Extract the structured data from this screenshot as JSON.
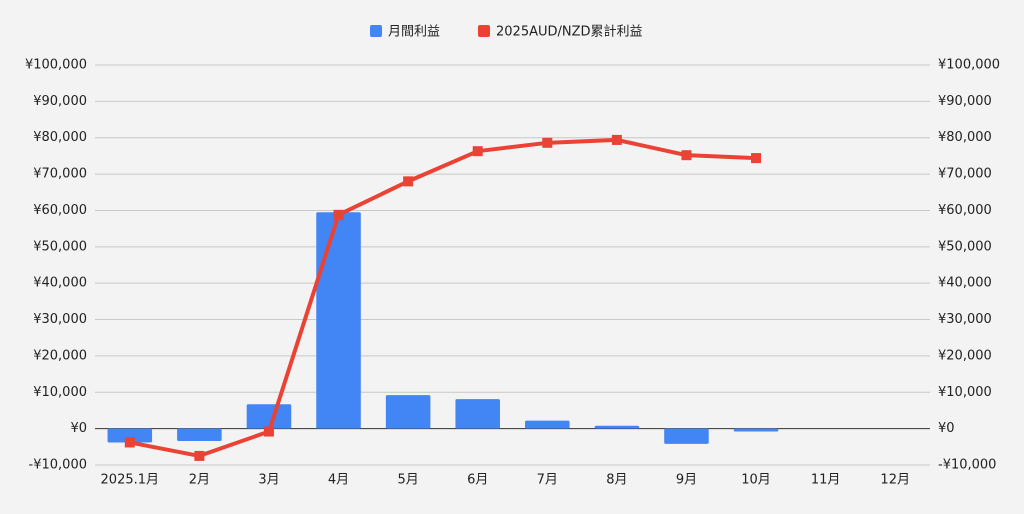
{
  "chart_data": {
    "type": "combo",
    "categories": [
      "2025.1月",
      "2月",
      "3月",
      "4月",
      "5月",
      "6月",
      "7月",
      "8月",
      "9月",
      "10月",
      "11月",
      "12月"
    ],
    "series": [
      {
        "name": "月間利益",
        "type": "bar",
        "color": "#4285f4",
        "values": [
          -3800,
          -3400,
          6700,
          59500,
          9200,
          8100,
          2200,
          800,
          -4200,
          -800,
          null,
          null
        ]
      },
      {
        "name": "2025AUD/NZD累計利益",
        "type": "line",
        "axis": "y2",
        "color": "#ea4335",
        "values": [
          -3800,
          -7500,
          -800,
          58800,
          68000,
          76300,
          78600,
          79400,
          75200,
          74400,
          null,
          null
        ]
      }
    ],
    "ylim": [
      -10000,
      100000
    ],
    "yticks": [
      {
        "value": -10000,
        "label": "-¥10,000"
      },
      {
        "value": 0,
        "label": "¥0"
      },
      {
        "value": 10000,
        "label": "¥10,000"
      },
      {
        "value": 20000,
        "label": "¥20,000"
      },
      {
        "value": 30000,
        "label": "¥30,000"
      },
      {
        "value": 40000,
        "label": "¥40,000"
      },
      {
        "value": 50000,
        "label": "¥50,000"
      },
      {
        "value": 60000,
        "label": "¥60,000"
      },
      {
        "value": 70000,
        "label": "¥70,000"
      },
      {
        "value": 80000,
        "label": "¥80,000"
      },
      {
        "value": 90000,
        "label": "¥90,000"
      },
      {
        "value": 100000,
        "label": "¥100,000"
      }
    ],
    "y2lim": [
      -10000,
      100000
    ],
    "y2ticks": [
      {
        "value": -10000,
        "label": "-¥10,000"
      },
      {
        "value": 0,
        "label": "¥0"
      },
      {
        "value": 10000,
        "label": "¥10,000"
      },
      {
        "value": 20000,
        "label": "¥20,000"
      },
      {
        "value": 30000,
        "label": "¥30,000"
      },
      {
        "value": 40000,
        "label": "¥40,000"
      },
      {
        "value": 50000,
        "label": "¥50,000"
      },
      {
        "value": 60000,
        "label": "¥60,000"
      },
      {
        "value": 70000,
        "label": "¥70,000"
      },
      {
        "value": 80000,
        "label": "¥80,000"
      },
      {
        "value": 90000,
        "label": "¥90,000"
      },
      {
        "value": 100000,
        "label": "¥100,000"
      }
    ],
    "grid": true,
    "legend": "top"
  }
}
